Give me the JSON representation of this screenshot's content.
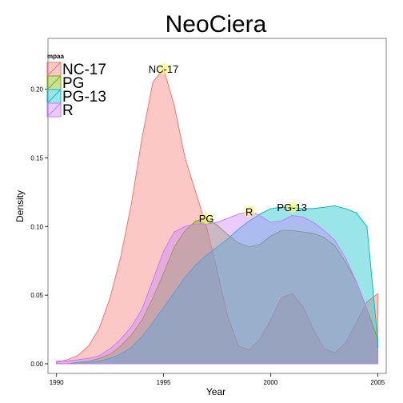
{
  "chart_data": {
    "type": "area",
    "title": "NeoCiera",
    "xlabel": "Year",
    "ylabel": "Density",
    "xlim": [
      1989.6,
      2005.4
    ],
    "ylim": [
      -0.007,
      0.237
    ],
    "x_ticks": [
      1990,
      1995,
      2000,
      2005
    ],
    "y_ticks": [
      0.0,
      0.05,
      0.1,
      0.15,
      0.2
    ],
    "y_tick_labels": [
      "0.00",
      "0.05",
      "0.10",
      "0.15",
      "0.20"
    ],
    "grid": false,
    "legend": {
      "title": "mpaa",
      "placement": "top-left inside",
      "entries": [
        "NC-17",
        "PG",
        "PG-13",
        "R"
      ]
    },
    "series": [
      {
        "name": "NC-17",
        "color": "#F8766D",
        "x": [
          1990,
          1990.5,
          1991,
          1991.5,
          1992,
          1992.5,
          1993,
          1993.5,
          1994,
          1994.5,
          1995,
          1995.5,
          1996,
          1996.5,
          1997,
          1997.5,
          1998,
          1998.5,
          1999,
          1999.5,
          2000,
          2000.5,
          2001,
          2001.5,
          2002,
          2002.5,
          2003,
          2003.5,
          2004,
          2004.5,
          2005
        ],
        "y": [
          0.001,
          0.003,
          0.006,
          0.013,
          0.026,
          0.048,
          0.078,
          0.117,
          0.165,
          0.205,
          0.215,
          0.188,
          0.15,
          0.125,
          0.1,
          0.068,
          0.034,
          0.013,
          0.01,
          0.018,
          0.032,
          0.048,
          0.051,
          0.042,
          0.025,
          0.011,
          0.008,
          0.015,
          0.03,
          0.045,
          0.051
        ]
      },
      {
        "name": "PG",
        "color": "#7CAE00",
        "x": [
          1990,
          1990.5,
          1991,
          1991.5,
          1992,
          1992.5,
          1993,
          1993.5,
          1994,
          1994.5,
          1995,
          1995.5,
          1996,
          1996.5,
          1997,
          1997.5,
          1998,
          1998.5,
          1999,
          1999.5,
          2000,
          2000.5,
          2001,
          2001.5,
          2002,
          2002.5,
          2003,
          2003.5,
          2004,
          2004.5,
          2005
        ],
        "y": [
          0.0,
          0.0,
          0.001,
          0.002,
          0.004,
          0.007,
          0.013,
          0.021,
          0.032,
          0.048,
          0.066,
          0.085,
          0.097,
          0.104,
          0.106,
          0.101,
          0.094,
          0.088,
          0.085,
          0.087,
          0.093,
          0.097,
          0.097,
          0.096,
          0.095,
          0.092,
          0.086,
          0.074,
          0.06,
          0.04,
          0.018
        ]
      },
      {
        "name": "PG-13",
        "color": "#00BFC4",
        "x": [
          1990,
          1990.5,
          1991,
          1991.5,
          1992,
          1992.5,
          1993,
          1993.5,
          1994,
          1994.5,
          1995,
          1995.5,
          1996,
          1996.5,
          1997,
          1997.5,
          1998,
          1998.5,
          1999,
          1999.5,
          2000,
          2000.5,
          2001,
          2001.5,
          2002,
          2002.5,
          2003,
          2003.5,
          2004,
          2004.5,
          2005
        ],
        "y": [
          0.0,
          0.0,
          0.001,
          0.001,
          0.002,
          0.004,
          0.007,
          0.012,
          0.02,
          0.03,
          0.041,
          0.052,
          0.063,
          0.072,
          0.079,
          0.085,
          0.091,
          0.098,
          0.104,
          0.109,
          0.113,
          0.114,
          0.114,
          0.113,
          0.113,
          0.114,
          0.115,
          0.113,
          0.11,
          0.1,
          0.018
        ]
      },
      {
        "name": "R",
        "color": "#C77CFF",
        "x": [
          1990,
          1990.5,
          1991,
          1991.5,
          1992,
          1992.5,
          1993,
          1993.5,
          1994,
          1994.5,
          1995,
          1995.5,
          1996,
          1996.5,
          1997,
          1997.5,
          1998,
          1998.5,
          1999,
          1999.5,
          2000,
          2000.5,
          2001,
          2001.5,
          2002,
          2002.5,
          2003,
          2003.5,
          2004,
          2004.5,
          2005
        ],
        "y": [
          0.002,
          0.002,
          0.003,
          0.004,
          0.006,
          0.011,
          0.018,
          0.027,
          0.04,
          0.061,
          0.082,
          0.096,
          0.1,
          0.102,
          0.102,
          0.103,
          0.106,
          0.109,
          0.111,
          0.108,
          0.103,
          0.104,
          0.108,
          0.107,
          0.103,
          0.097,
          0.09,
          0.077,
          0.06,
          0.04,
          0.01
        ]
      }
    ],
    "annotations": [
      {
        "text": "NC-17",
        "x": 1995,
        "y": 0.215
      },
      {
        "text": "PG",
        "x": 1997,
        "y": 0.106
      },
      {
        "text": "R",
        "x": 1999,
        "y": 0.111
      },
      {
        "text": "PG-13",
        "x": 2001,
        "y": 0.114
      }
    ]
  }
}
